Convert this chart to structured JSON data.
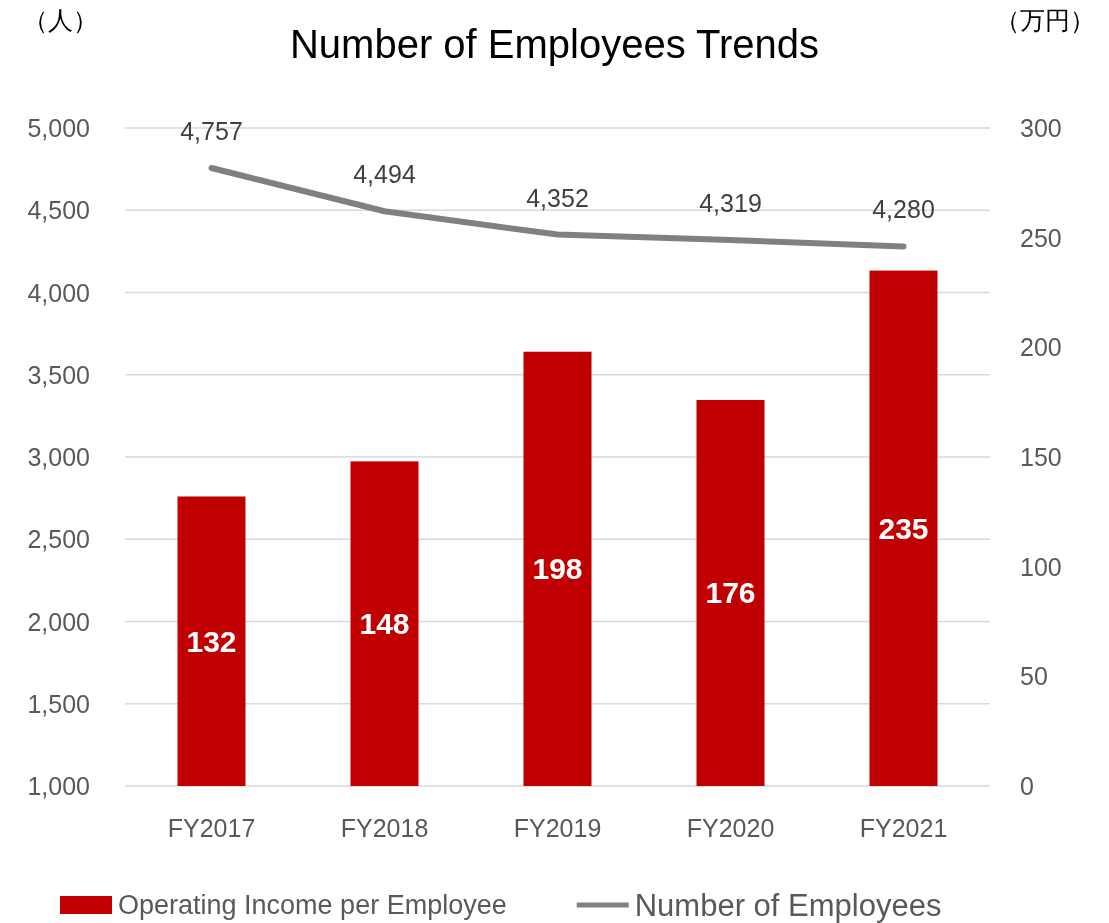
{
  "chart_data": {
    "type": "bar",
    "title": "Number of Employees Trends",
    "ylabel": "（人）",
    "y2label": "（万円）",
    "categories": [
      "FY2017",
      "FY2018",
      "FY2019",
      "FY2020",
      "FY2021"
    ],
    "series": [
      {
        "name": "Operating Income per Employee",
        "axis": "y2",
        "color": "#c00000",
        "values": [
          132,
          148,
          198,
          176,
          235
        ],
        "value_labels": [
          "132",
          "148",
          "198",
          "176",
          "235"
        ]
      },
      {
        "name": "Number of Employees",
        "type": "line",
        "axis": "y",
        "color": "#808080",
        "values": [
          4757,
          4494,
          4352,
          4319,
          4280
        ],
        "value_labels": [
          "4,757",
          "4,494",
          "4,352",
          "4,319",
          "4,280"
        ]
      }
    ],
    "ylim": [
      1000,
      5000
    ],
    "yticks": [
      {
        "value": 1000,
        "label": "1,000"
      },
      {
        "value": 1500,
        "label": "1,500"
      },
      {
        "value": 2000,
        "label": "2,000"
      },
      {
        "value": 2500,
        "label": "2,500"
      },
      {
        "value": 3000,
        "label": "3,000"
      },
      {
        "value": 3500,
        "label": "3,500"
      },
      {
        "value": 4000,
        "label": "4,000"
      },
      {
        "value": 4500,
        "label": "4,500"
      },
      {
        "value": 5000,
        "label": "5,000"
      }
    ],
    "y2lim": [
      0,
      300
    ],
    "y2ticks": [
      0,
      50,
      100,
      150,
      200,
      250,
      300
    ],
    "grid": "y",
    "legend": "bottom",
    "marker": "none",
    "line_style": "solid"
  }
}
